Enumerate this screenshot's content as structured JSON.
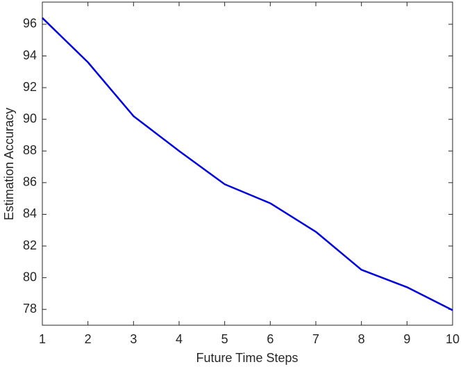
{
  "chart_data": {
    "type": "line",
    "x_label": "Future Time Steps",
    "y_label": "Estimation Accuracy",
    "x": [
      1,
      2,
      3,
      4,
      5,
      6,
      7,
      8,
      9,
      10
    ],
    "series": [
      {
        "color": "#0000dd",
        "values": [
          96.4,
          93.6,
          90.2,
          88.0,
          85.9,
          84.7,
          82.9,
          80.5,
          79.4,
          77.95
        ]
      }
    ],
    "xlim": [
      1,
      10
    ],
    "xticks": [
      1,
      2,
      3,
      4,
      5,
      6,
      7,
      8,
      9,
      10
    ],
    "ylim": [
      77,
      97.4
    ],
    "yticks": [
      78,
      80,
      82,
      84,
      86,
      88,
      90,
      92,
      94,
      96
    ]
  }
}
